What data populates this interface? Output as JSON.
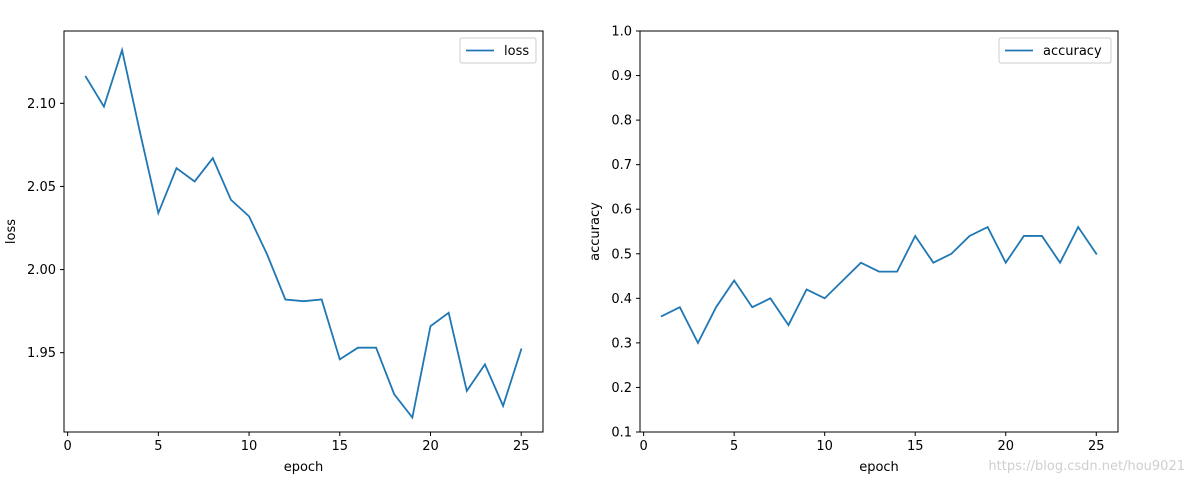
{
  "colors": {
    "series": "#1f77b4",
    "axes": "#000000",
    "background": "#ffffff",
    "legend_border": "#cccccc"
  },
  "chart_data": [
    {
      "type": "line",
      "xlabel": "epoch",
      "ylabel": "loss",
      "xlim": [
        -0.2,
        26.2
      ],
      "ylim": [
        1.9023,
        2.1435
      ],
      "xticks": [
        0,
        5,
        10,
        15,
        20,
        25
      ],
      "yticks": [
        1.95,
        2.0,
        2.05,
        2.1
      ],
      "ytick_labels": [
        "1.95",
        "2.00",
        "2.05",
        "2.10"
      ],
      "legend_placement": "top-right",
      "grid": false,
      "series": [
        {
          "name": "loss",
          "x": [
            1,
            2,
            3,
            4,
            5,
            6,
            7,
            8,
            9,
            10,
            11,
            12,
            13,
            14,
            15,
            16,
            17,
            18,
            19,
            20,
            21,
            22,
            23,
            24,
            25
          ],
          "y": [
            2.116,
            2.098,
            2.132,
            2.082,
            2.034,
            2.061,
            2.053,
            2.067,
            2.042,
            2.032,
            2.009,
            1.982,
            1.981,
            1.982,
            1.946,
            1.953,
            1.953,
            1.925,
            1.911,
            1.966,
            1.974,
            1.927,
            1.943,
            1.918,
            1.952
          ]
        }
      ]
    },
    {
      "type": "line",
      "xlabel": "epoch",
      "ylabel": "accuracy",
      "xlim": [
        -0.2,
        26.2
      ],
      "ylim": [
        0.1,
        1.0
      ],
      "xticks": [
        0,
        5,
        10,
        15,
        20,
        25
      ],
      "yticks": [
        0.1,
        0.2,
        0.3,
        0.4,
        0.5,
        0.6,
        0.7,
        0.8,
        0.9,
        1.0
      ],
      "ytick_labels": [
        "0.1",
        "0.2",
        "0.3",
        "0.4",
        "0.5",
        "0.6",
        "0.7",
        "0.8",
        "0.9",
        "1.0"
      ],
      "legend_placement": "top-right",
      "grid": false,
      "series": [
        {
          "name": "accuracy",
          "x": [
            1,
            2,
            3,
            4,
            5,
            6,
            7,
            8,
            9,
            10,
            11,
            12,
            13,
            14,
            15,
            16,
            17,
            18,
            19,
            20,
            21,
            22,
            23,
            24,
            25
          ],
          "y": [
            0.36,
            0.38,
            0.3,
            0.38,
            0.44,
            0.38,
            0.4,
            0.34,
            0.42,
            0.4,
            0.44,
            0.48,
            0.46,
            0.46,
            0.54,
            0.48,
            0.5,
            0.54,
            0.56,
            0.48,
            0.54,
            0.54,
            0.48,
            0.56,
            0.5
          ]
        }
      ]
    }
  ],
  "watermark": "https://blog.csdn.net/hou9021"
}
